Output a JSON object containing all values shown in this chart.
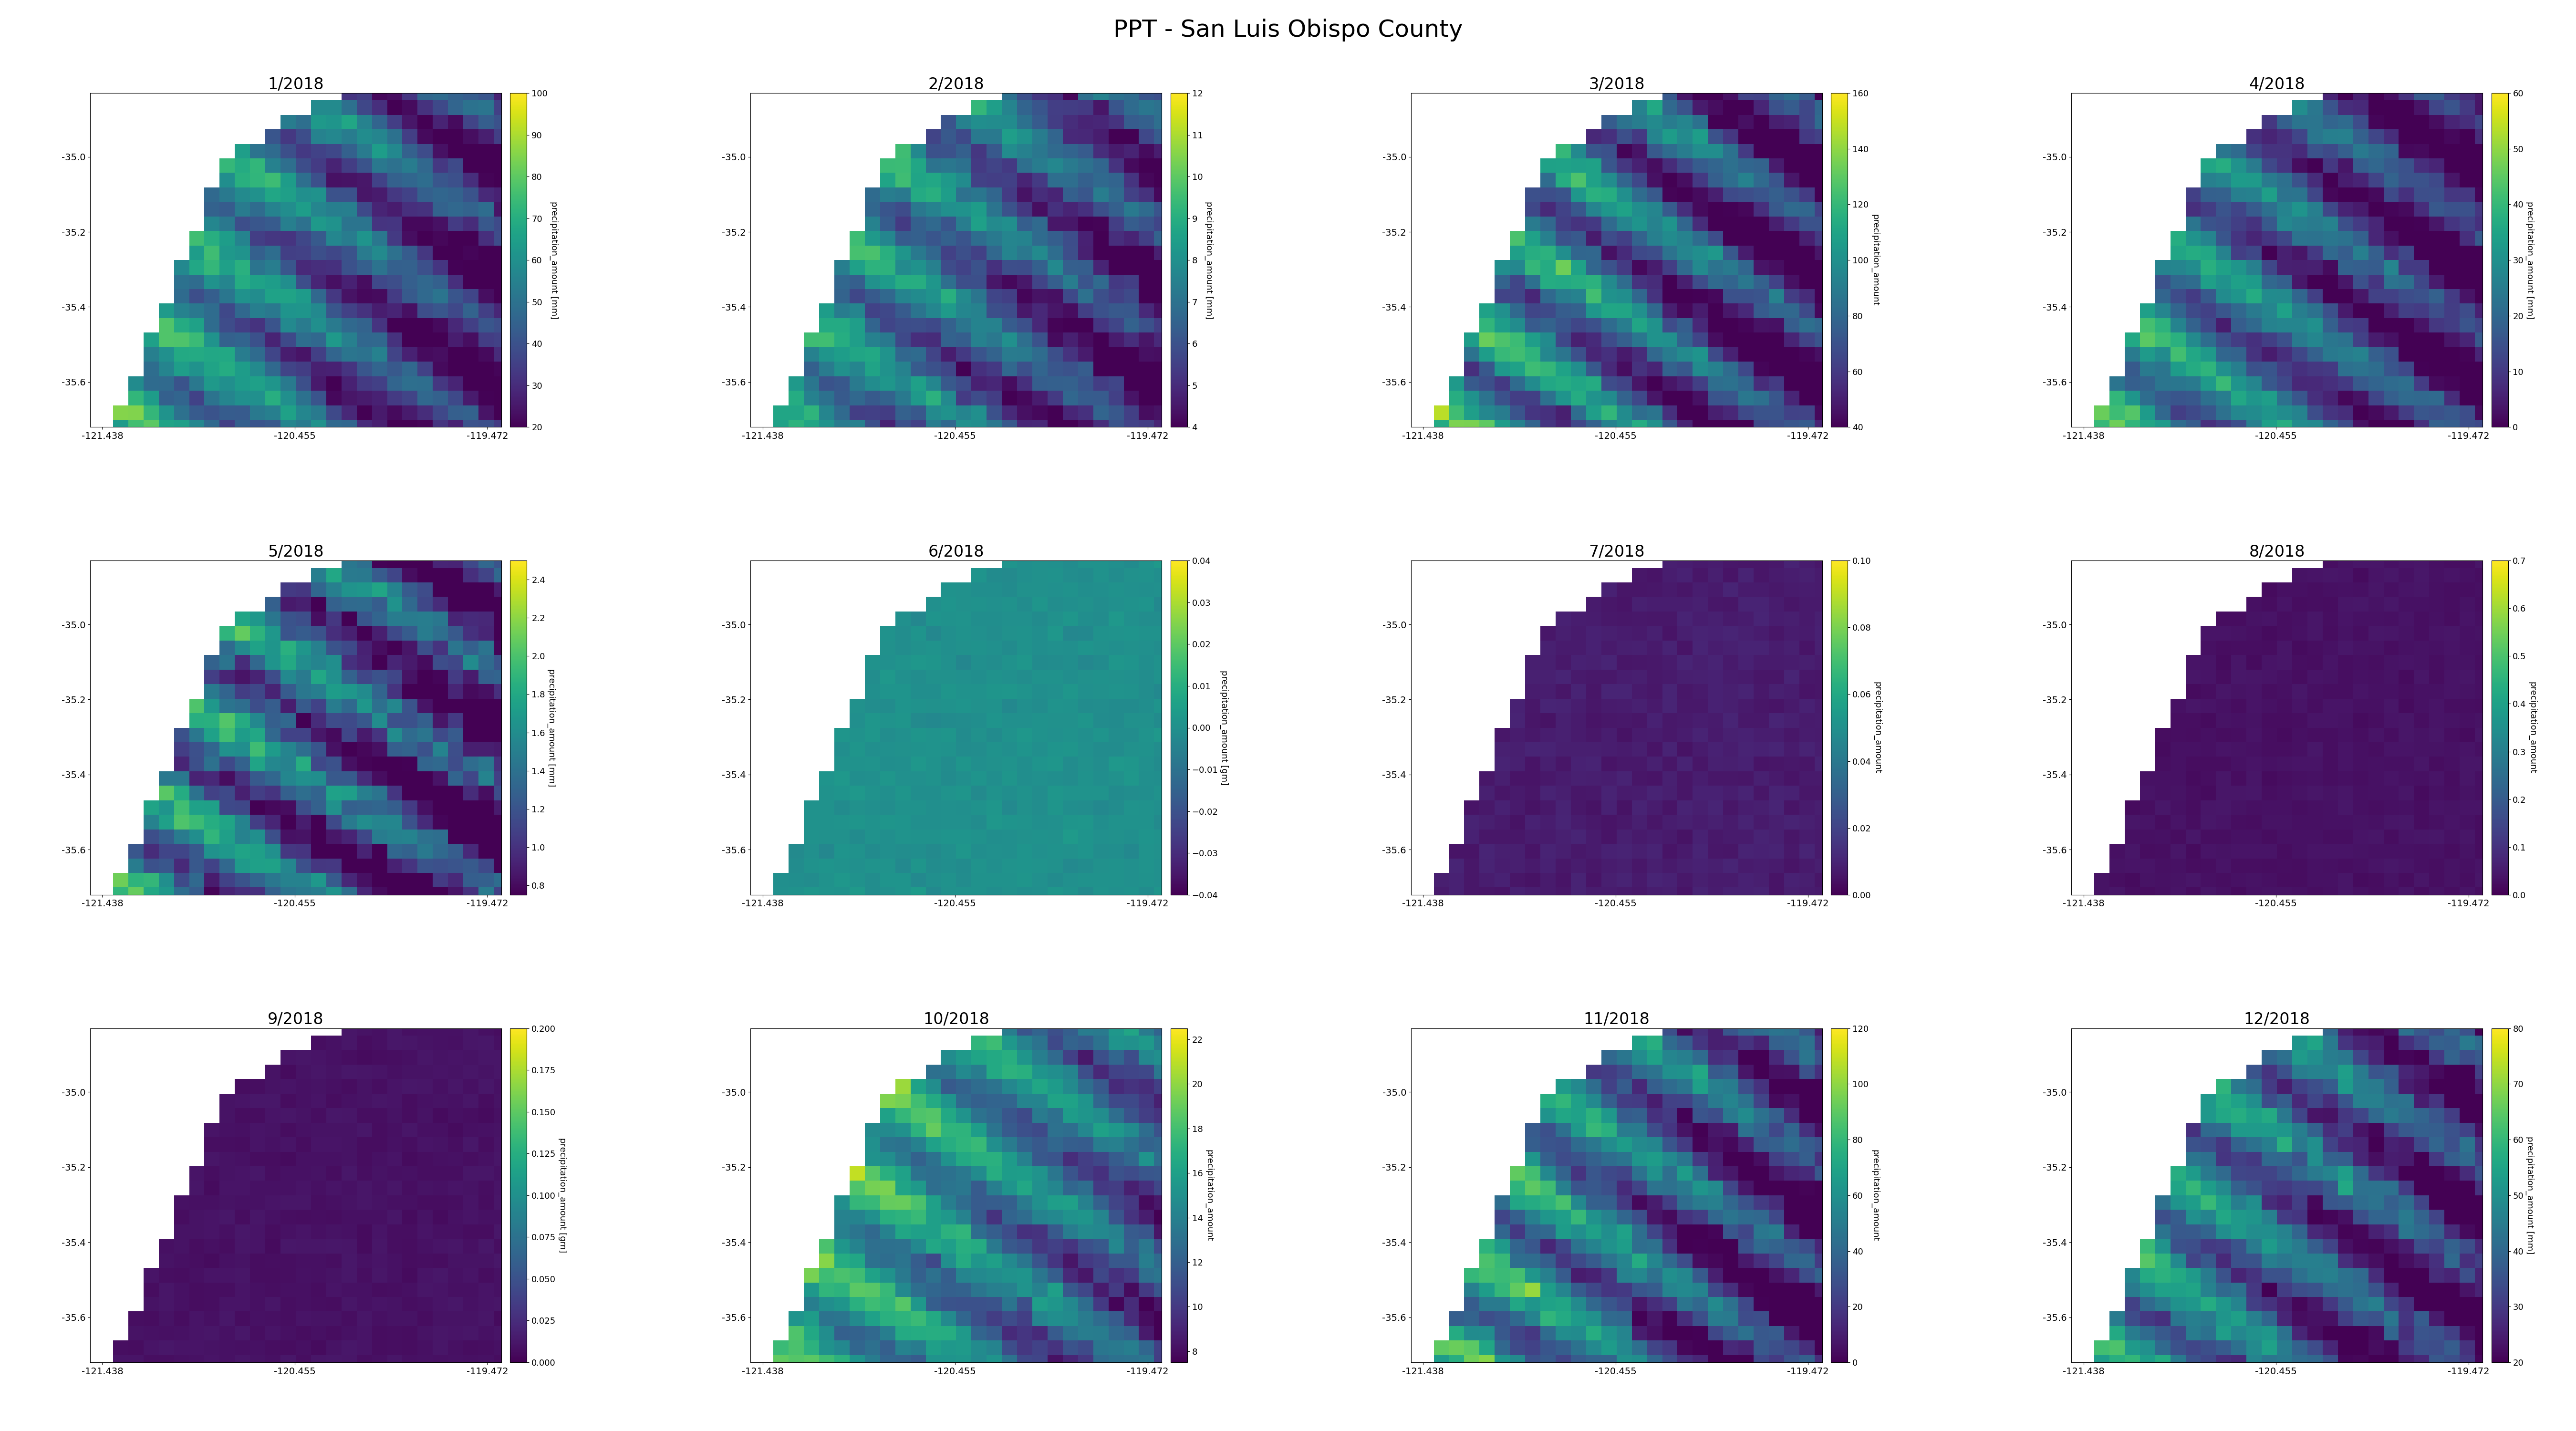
{
  "title": "PPT - San Luis Obispo County",
  "months": [
    "1/2018",
    "2/2018",
    "3/2018",
    "4/2018",
    "5/2018",
    "6/2018",
    "7/2018",
    "8/2018",
    "9/2018",
    "10/2018",
    "11/2018",
    "12/2018"
  ],
  "lon_min": -121.5,
  "lon_max": -119.4,
  "lat_min": -35.72,
  "lat_max": -34.83,
  "x_ticks": [
    -121.438,
    -120.455,
    -119.472
  ],
  "y_ticks": [
    -35.0,
    -35.2,
    -35.4,
    -35.6
  ],
  "colorbars": [
    {
      "vmin": 20,
      "vmax": 100,
      "label": "precipitation_amount [mm]"
    },
    {
      "vmin": 4,
      "vmax": 12,
      "label": "precipitation_amount [mm]"
    },
    {
      "vmin": 40,
      "vmax": 160,
      "label": "precipitation_amount"
    },
    {
      "vmin": 0,
      "vmax": 60,
      "label": "precipitation_amount [mm]"
    },
    {
      "vmin": 0.75,
      "vmax": 2.5,
      "label": "precipitation_amount [mm]"
    },
    {
      "vmin": -0.04,
      "vmax": 0.04,
      "label": "precipitation_amount [gm]"
    },
    {
      "vmin": 0.0,
      "vmax": 0.1,
      "label": "precipitation_amount"
    },
    {
      "vmin": 0.0,
      "vmax": 0.7,
      "label": "precipitation_amount"
    },
    {
      "vmin": 0.0,
      "vmax": 0.2,
      "label": "precipitation_amount [gm]"
    },
    {
      "vmin": 7.5,
      "vmax": 22.5,
      "label": "precipitation_amount"
    },
    {
      "vmin": 0,
      "vmax": 120,
      "label": "precipitation_amount"
    },
    {
      "vmin": 20,
      "vmax": 80,
      "label": "precipitation_amount [mm]"
    }
  ],
  "colormap": "viridis",
  "figsize": [
    54.0,
    30.0
  ],
  "nrows": 3,
  "ncols": 4,
  "nx": 28,
  "ny": 24,
  "background_color": "white"
}
